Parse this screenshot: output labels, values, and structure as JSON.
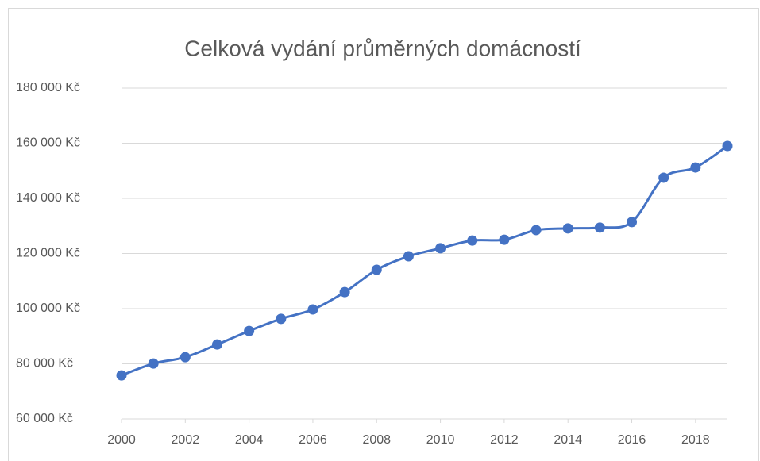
{
  "chart_data": {
    "type": "line",
    "title": "Celková vydání průměrných domácností",
    "x": [
      2000,
      2001,
      2002,
      2003,
      2004,
      2005,
      2006,
      2007,
      2008,
      2009,
      2010,
      2011,
      2012,
      2013,
      2014,
      2015,
      2016,
      2017,
      2018,
      2019
    ],
    "series": [
      {
        "name": "Celková vydání",
        "color": "#4472c4",
        "values": [
          75800,
          80100,
          82400,
          87000,
          91900,
          96300,
          99700,
          106000,
          114100,
          119000,
          121900,
          124700,
          125000,
          128500,
          129100,
          129400,
          131400,
          147500,
          151200,
          159000
        ]
      }
    ],
    "xlim": [
      2000,
      2019
    ],
    "xticks": [
      2000,
      2002,
      2004,
      2006,
      2008,
      2010,
      2012,
      2014,
      2016,
      2018
    ],
    "ylim": [
      60000,
      180000
    ],
    "yticks": [
      {
        "value": 60000,
        "label": "60 000 Kč"
      },
      {
        "value": 80000,
        "label": "80 000 Kč"
      },
      {
        "value": 100000,
        "label": "100 000 Kč"
      },
      {
        "value": 120000,
        "label": "120 000 Kč"
      },
      {
        "value": 140000,
        "label": "140 000 Kč"
      },
      {
        "value": 160000,
        "label": "160 000 Kč"
      },
      {
        "value": 180000,
        "label": "180 000 Kč"
      }
    ],
    "grid": true,
    "smooth": true
  }
}
